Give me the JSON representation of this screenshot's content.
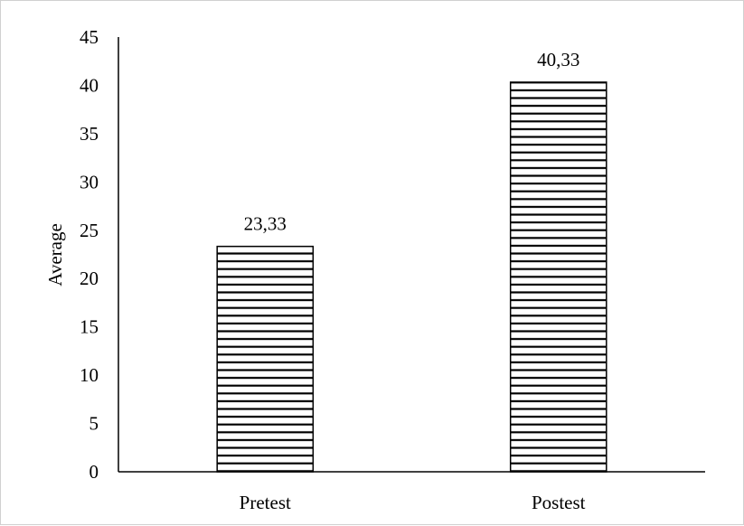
{
  "chart_data": {
    "type": "bar",
    "title": "",
    "xlabel": "",
    "ylabel": "Average",
    "categories": [
      "Pretest",
      "Postest"
    ],
    "values": [
      23.33,
      40.33
    ],
    "data_labels": [
      "23,33",
      "40,33"
    ],
    "ylim": [
      0,
      45
    ],
    "yticks": [
      0,
      5,
      10,
      15,
      20,
      25,
      30,
      35,
      40,
      45
    ],
    "grid": false,
    "legend": "none",
    "bar_pattern": "horizontal-stripes",
    "colors": {
      "bar_fill": "#ffffff",
      "bar_stroke": "#000000",
      "axis": "#000000",
      "frame_border": "#d0d0d0"
    }
  }
}
